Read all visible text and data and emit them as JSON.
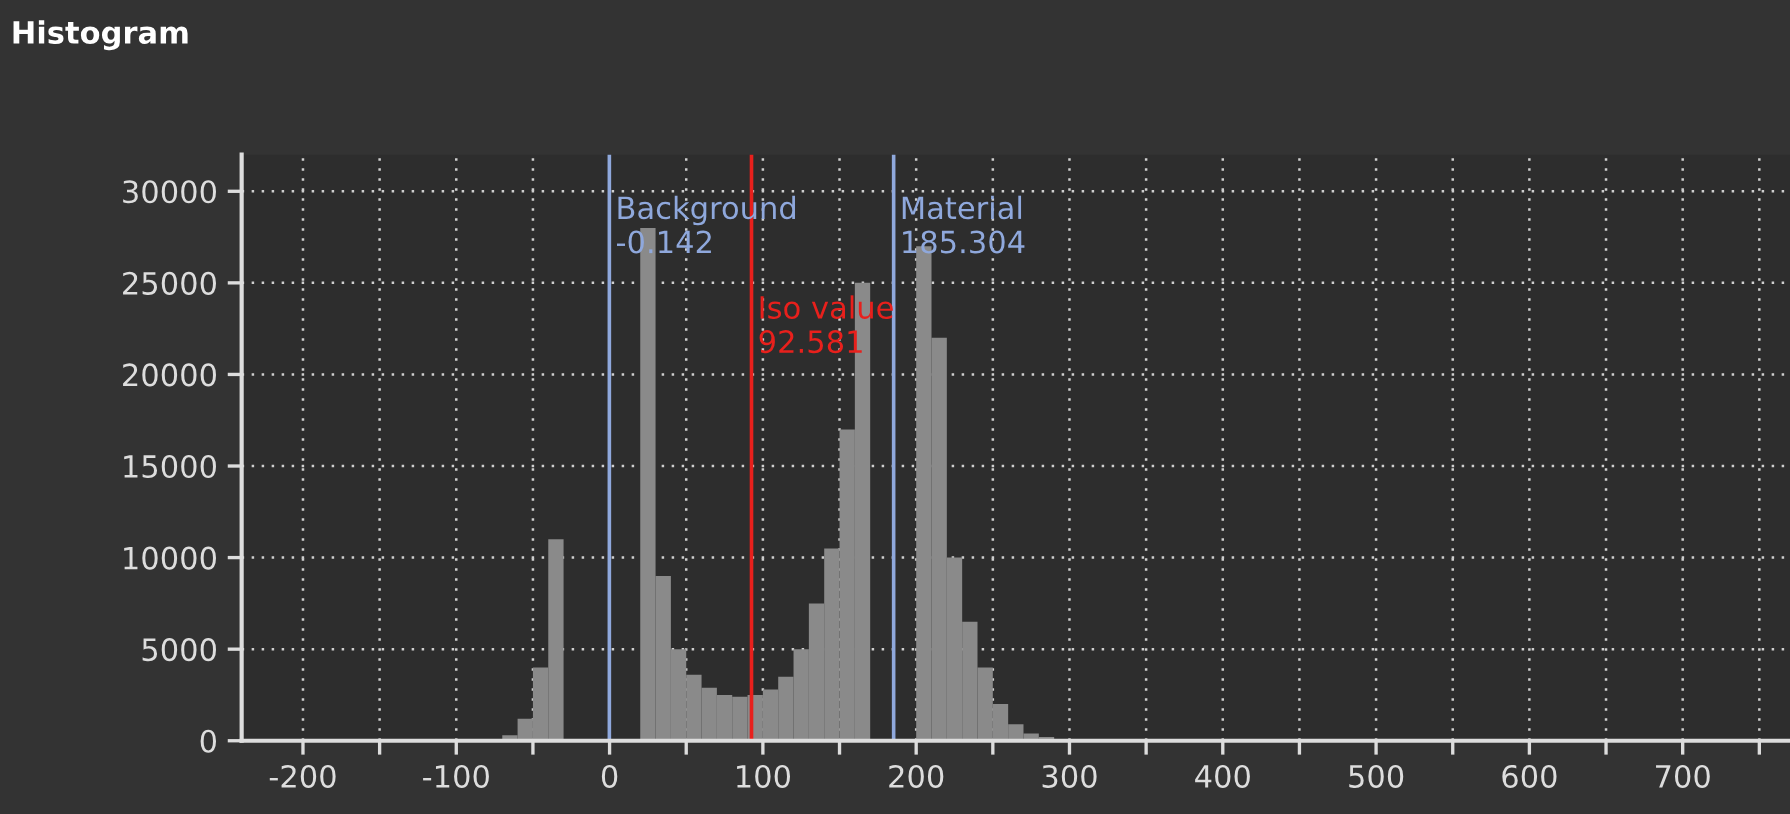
{
  "chart_data": {
    "type": "histogram",
    "title": "Histogram",
    "bins": [
      -70,
      -60,
      -50,
      -40,
      -30,
      -20,
      -10,
      0,
      10,
      20,
      30,
      40,
      50,
      60,
      70,
      80,
      90,
      100,
      110,
      120,
      130,
      140,
      150,
      160,
      170,
      180,
      190,
      200,
      210,
      220,
      230,
      240,
      250,
      260,
      270,
      280,
      290
    ],
    "values": [
      300,
      1200,
      4000,
      11000,
      null,
      null,
      null,
      null,
      null,
      28000,
      9000,
      5000,
      3600,
      2900,
      2500,
      2400,
      2500,
      2800,
      3500,
      5000,
      7500,
      10500,
      17000,
      25000,
      null,
      null,
      null,
      27000,
      22000,
      10000,
      6500,
      4000,
      2000,
      900,
      400,
      200
    ],
    "color": "#8a8a8a",
    "xlim": [
      -240,
      770
    ],
    "ylim": [
      0,
      32000
    ],
    "xticks": [
      -200,
      {
        "value": -150,
        "label": null
      },
      -100,
      {
        "value": -50,
        "label": null
      },
      0,
      {
        "value": 50,
        "label": null
      },
      100,
      {
        "value": 150,
        "label": null
      },
      200,
      {
        "value": 250,
        "label": null
      },
      300,
      {
        "value": 350,
        "label": null
      },
      400,
      {
        "value": 450,
        "label": null
      },
      500,
      {
        "value": 550,
        "label": null
      },
      600,
      {
        "value": 650,
        "label": null
      },
      700,
      {
        "value": 750,
        "label": null
      }
    ],
    "yticks": [
      0,
      5000,
      10000,
      15000,
      20000,
      25000,
      30000
    ],
    "grid": true,
    "ref_lines": [
      {
        "axis": "x",
        "value": -0.142,
        "label": "Background\n-0.142",
        "color": "#8fa8dc"
      },
      {
        "axis": "x",
        "value": 185.304,
        "label": "Material\n185.304",
        "color": "#8fa8dc"
      },
      {
        "axis": "x",
        "value": 92.581,
        "label": "Iso value\n92.581",
        "color": "#e8201c"
      }
    ]
  }
}
